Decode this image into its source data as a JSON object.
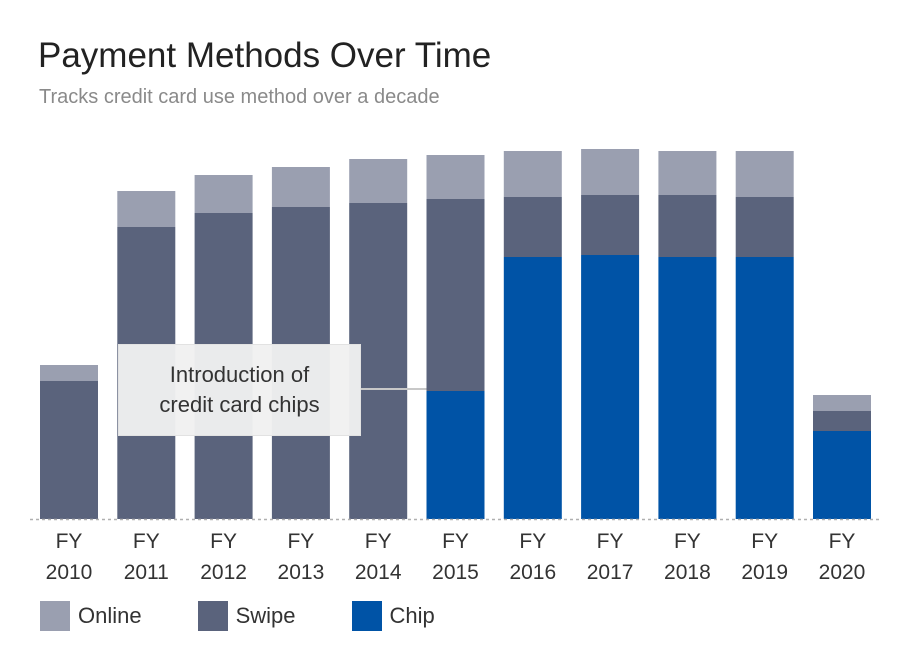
{
  "title": "Payment Methods Over Time",
  "subtitle": "Tracks credit card use method over a decade",
  "colors": {
    "online": "#9a9fb0",
    "swipe": "#5a637c",
    "chip": "#0053a6"
  },
  "legend": [
    {
      "label": "Online",
      "color": "#9a9fb0"
    },
    {
      "label": "Swipe",
      "color": "#5a637c"
    },
    {
      "label": "Chip",
      "color": "#0053a6"
    }
  ],
  "annotation": {
    "line1": "Introduction of",
    "line2": "credit card chips",
    "target_category": "FY 2015"
  },
  "chart_data": {
    "type": "bar",
    "stacked": true,
    "title": "Payment Methods Over Time",
    "subtitle": "Tracks credit card use method over a decade",
    "xlabel": "",
    "ylabel": "",
    "categories": [
      "FY 2010",
      "FY 2011",
      "FY 2012",
      "FY 2013",
      "FY 2014",
      "FY 2015",
      "FY 2016",
      "FY 2017",
      "FY 2018",
      "FY 2019",
      "FY 2020"
    ],
    "category_lines": [
      [
        "FY",
        "2010"
      ],
      [
        "FY",
        "2011"
      ],
      [
        "FY",
        "2012"
      ],
      [
        "FY",
        "2013"
      ],
      [
        "FY",
        "2014"
      ],
      [
        "FY",
        "2015"
      ],
      [
        "FY",
        "2016"
      ],
      [
        "FY",
        "2017"
      ],
      [
        "FY",
        "2018"
      ],
      [
        "FY",
        "2019"
      ],
      [
        "FY",
        "2020"
      ]
    ],
    "series": [
      {
        "name": "Chip",
        "color": "#0053a6",
        "values": [
          0,
          0,
          0,
          0,
          0,
          128,
          262,
          264,
          262,
          262,
          88
        ]
      },
      {
        "name": "Swipe",
        "color": "#5a637c",
        "values": [
          138,
          292,
          306,
          312,
          316,
          192,
          60,
          60,
          62,
          60,
          20
        ]
      },
      {
        "name": "Online",
        "color": "#9a9fb0",
        "values": [
          16,
          36,
          38,
          40,
          44,
          44,
          46,
          46,
          44,
          46,
          16
        ]
      }
    ],
    "ylim": [
      0,
      380
    ],
    "grid": false,
    "legend_position": "bottom-left"
  }
}
